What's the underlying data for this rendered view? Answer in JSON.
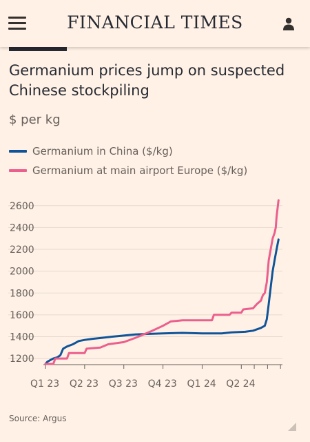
{
  "header": {
    "brand": "FINANCIAL TIMES",
    "menu_icon": "hamburger-menu-icon",
    "user_icon": "user-account-icon"
  },
  "article": {
    "title": "Germanium prices jump on suspected Chinese stockpiling",
    "subtitle": "$ per kg",
    "source": "Source: Argus"
  },
  "colors": {
    "background": "#fff1e5",
    "china": "#0f5499",
    "europe": "#eb5e8d",
    "grid": "#e6d9ce",
    "text": "#66605c"
  },
  "chart_data": {
    "type": "line",
    "title": "Germanium prices jump on suspected Chinese stockpiling",
    "ylabel": "$ per kg",
    "xlabel": "",
    "ylim": [
      1150,
      2700
    ],
    "xlim": [
      0,
      6.05
    ],
    "yticks": [
      1200,
      1400,
      1600,
      1800,
      2000,
      2200,
      2400,
      2600
    ],
    "xticks": [
      {
        "label": "Q1 23",
        "x": 0
      },
      {
        "label": "Q2 23",
        "x": 1
      },
      {
        "label": "Q3 23",
        "x": 2
      },
      {
        "label": "Q4 23",
        "x": 3
      },
      {
        "label": "Q1 24",
        "x": 4
      },
      {
        "label": "Q2 24",
        "x": 5
      }
    ],
    "grid": true,
    "legend_position": "top-left",
    "series": [
      {
        "name": "Germanium in China ($/kg)",
        "color": "#0f5499",
        "points": [
          [
            0,
            1150
          ],
          [
            0.05,
            1170
          ],
          [
            0.12,
            1185
          ],
          [
            0.2,
            1200
          ],
          [
            0.3,
            1210
          ],
          [
            0.38,
            1230
          ],
          [
            0.45,
            1290
          ],
          [
            0.55,
            1310
          ],
          [
            0.7,
            1330
          ],
          [
            0.85,
            1360
          ],
          [
            1.0,
            1370
          ],
          [
            1.2,
            1380
          ],
          [
            1.45,
            1390
          ],
          [
            1.7,
            1400
          ],
          [
            2.0,
            1410
          ],
          [
            2.3,
            1420
          ],
          [
            2.6,
            1425
          ],
          [
            3.0,
            1430
          ],
          [
            3.5,
            1435
          ],
          [
            4.0,
            1430
          ],
          [
            4.5,
            1430
          ],
          [
            4.75,
            1440
          ],
          [
            5.1,
            1445
          ],
          [
            5.3,
            1455
          ],
          [
            5.5,
            1480
          ],
          [
            5.6,
            1500
          ],
          [
            5.65,
            1560
          ],
          [
            5.7,
            1700
          ],
          [
            5.75,
            1850
          ],
          [
            5.8,
            2000
          ],
          [
            5.85,
            2100
          ],
          [
            5.9,
            2200
          ],
          [
            5.95,
            2290
          ]
        ]
      },
      {
        "name": "Germanium at main airport Europe ($/kg)",
        "color": "#eb5e8d",
        "points": [
          [
            0,
            1150
          ],
          [
            0.2,
            1150
          ],
          [
            0.25,
            1200
          ],
          [
            0.55,
            1200
          ],
          [
            0.6,
            1250
          ],
          [
            1.0,
            1250
          ],
          [
            1.05,
            1290
          ],
          [
            1.4,
            1300
          ],
          [
            1.6,
            1330
          ],
          [
            2.0,
            1350
          ],
          [
            2.3,
            1390
          ],
          [
            2.7,
            1450
          ],
          [
            3.0,
            1500
          ],
          [
            3.2,
            1540
          ],
          [
            3.5,
            1550
          ],
          [
            4.0,
            1550
          ],
          [
            4.25,
            1550
          ],
          [
            4.3,
            1600
          ],
          [
            4.7,
            1600
          ],
          [
            4.75,
            1620
          ],
          [
            5.0,
            1620
          ],
          [
            5.05,
            1650
          ],
          [
            5.3,
            1660
          ],
          [
            5.4,
            1700
          ],
          [
            5.5,
            1730
          ],
          [
            5.55,
            1780
          ],
          [
            5.6,
            1800
          ],
          [
            5.65,
            1900
          ],
          [
            5.7,
            2100
          ],
          [
            5.8,
            2300
          ],
          [
            5.85,
            2350
          ],
          [
            5.88,
            2400
          ],
          [
            5.9,
            2500
          ],
          [
            5.95,
            2650
          ]
        ]
      }
    ]
  }
}
